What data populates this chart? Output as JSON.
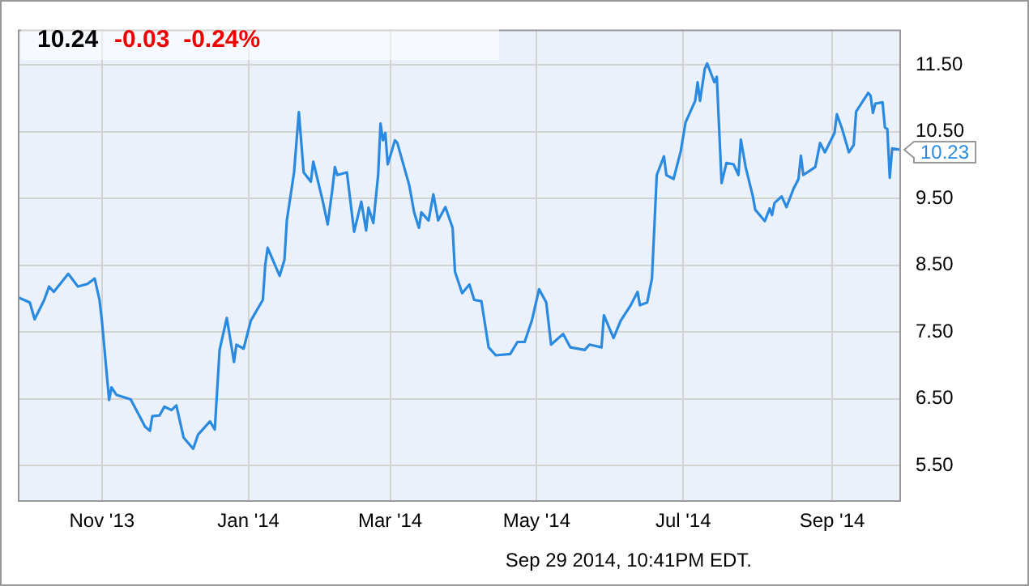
{
  "chart_data": {
    "type": "line",
    "title": "10.24",
    "subtitle": "-0.03  -0.24%",
    "annotations": [
      {
        "text": "10.23",
        "x": "2014-09-29",
        "y": 10.23
      },
      "Sep 29 2014, 10:41PM EDT."
    ],
    "x": [
      "2013-09-27",
      "2013-10-02",
      "2013-10-04",
      "2013-10-08",
      "2013-10-10",
      "2013-10-12",
      "2013-10-18",
      "2013-10-22",
      "2013-10-26",
      "2013-10-29",
      "2013-10-31",
      "2013-11-01",
      "2013-11-04",
      "2013-11-05",
      "2013-11-07",
      "2013-11-13",
      "2013-11-19",
      "2013-11-21",
      "2013-11-22",
      "2013-11-25",
      "2013-11-27",
      "2013-11-30",
      "2013-12-02",
      "2013-12-05",
      "2013-12-09",
      "2013-12-11",
      "2013-12-16",
      "2013-12-18",
      "2013-12-20",
      "2013-12-23",
      "2013-12-26",
      "2013-12-27",
      "2013-12-30",
      "2014-01-02",
      "2014-01-07",
      "2014-01-08",
      "2014-01-09",
      "2014-01-14",
      "2014-01-16",
      "2014-01-17",
      "2014-01-20",
      "2014-01-22",
      "2014-01-24",
      "2014-01-27",
      "2014-01-28",
      "2014-02-01",
      "2014-02-03",
      "2014-02-05",
      "2014-02-06",
      "2014-02-07",
      "2014-02-11",
      "2014-02-14",
      "2014-02-17",
      "2014-02-19",
      "2014-02-20",
      "2014-02-22",
      "2014-02-24",
      "2014-02-25",
      "2014-02-26",
      "2014-02-27",
      "2014-02-28",
      "2014-03-03",
      "2014-03-04",
      "2014-03-09",
      "2014-03-11",
      "2014-03-13",
      "2014-03-14",
      "2014-03-17",
      "2014-03-19",
      "2014-03-21",
      "2014-03-24",
      "2014-03-27",
      "2014-03-28",
      "2014-03-31",
      "2014-04-03",
      "2014-04-05",
      "2014-04-08",
      "2014-04-11",
      "2014-04-14",
      "2014-04-20",
      "2014-04-23",
      "2014-04-26",
      "2014-04-29",
      "2014-05-02",
      "2014-05-05",
      "2014-05-07",
      "2014-05-12",
      "2014-05-15",
      "2014-05-21",
      "2014-05-23",
      "2014-05-28",
      "2014-05-29",
      "2014-06-02",
      "2014-06-05",
      "2014-06-09",
      "2014-06-12",
      "2014-06-13",
      "2014-06-16",
      "2014-06-18",
      "2014-06-20",
      "2014-06-23",
      "2014-06-24",
      "2014-06-27",
      "2014-06-30",
      "2014-07-02",
      "2014-07-06",
      "2014-07-07",
      "2014-07-08",
      "2014-07-10",
      "2014-07-11",
      "2014-07-14",
      "2014-07-15",
      "2014-07-17",
      "2014-07-19",
      "2014-07-22",
      "2014-07-24",
      "2014-07-25",
      "2014-07-27",
      "2014-07-30",
      "2014-07-31",
      "2014-08-04",
      "2014-08-06",
      "2014-08-07",
      "2014-08-08",
      "2014-08-11",
      "2014-08-13",
      "2014-08-16",
      "2014-08-18",
      "2014-08-19",
      "2014-08-20",
      "2014-08-25",
      "2014-08-27",
      "2014-08-29",
      "2014-09-02",
      "2014-09-03",
      "2014-09-05",
      "2014-09-08",
      "2014-09-10",
      "2014-09-11",
      "2014-09-16",
      "2014-09-17",
      "2014-09-18",
      "2014-09-19",
      "2014-09-22",
      "2014-09-23",
      "2014-09-24",
      "2014-09-25",
      "2014-09-26",
      "2014-09-29"
    ],
    "series": [
      {
        "color": "#2a8ae0",
        "values": [
          8.02,
          7.94,
          7.69,
          7.98,
          8.18,
          8.1,
          8.37,
          8.18,
          8.22,
          8.3,
          7.98,
          7.67,
          6.48,
          6.67,
          6.56,
          6.49,
          6.08,
          6.02,
          6.24,
          6.25,
          6.38,
          6.33,
          6.4,
          5.92,
          5.75,
          5.96,
          6.16,
          6.04,
          7.23,
          7.71,
          7.05,
          7.31,
          7.25,
          7.67,
          7.98,
          8.5,
          8.76,
          8.34,
          8.58,
          9.17,
          9.89,
          10.79,
          9.89,
          9.75,
          10.05,
          9.45,
          9.11,
          9.65,
          9.97,
          9.85,
          9.89,
          9.0,
          9.45,
          9.02,
          9.36,
          9.13,
          9.85,
          10.62,
          10.37,
          10.48,
          10.01,
          10.37,
          10.33,
          9.69,
          9.29,
          9.06,
          9.29,
          9.17,
          9.56,
          9.17,
          9.37,
          9.06,
          8.4,
          8.08,
          8.21,
          7.98,
          7.96,
          7.27,
          7.15,
          7.17,
          7.35,
          7.35,
          7.67,
          8.14,
          7.94,
          7.31,
          7.47,
          7.27,
          7.23,
          7.31,
          7.27,
          7.75,
          7.41,
          7.67,
          7.89,
          8.1,
          7.9,
          7.94,
          8.3,
          9.85,
          10.13,
          9.85,
          9.79,
          10.21,
          10.64,
          10.96,
          11.24,
          10.96,
          11.44,
          11.52,
          11.24,
          11.32,
          9.73,
          10.03,
          10.01,
          9.85,
          10.38,
          9.97,
          9.53,
          9.33,
          9.16,
          9.35,
          9.25,
          9.43,
          9.53,
          9.37,
          9.65,
          9.79,
          10.14,
          9.85,
          9.97,
          10.33,
          10.19,
          10.48,
          10.76,
          10.56,
          10.19,
          10.3,
          10.8,
          11.08,
          11.04,
          10.78,
          10.92,
          10.94,
          10.56,
          10.54,
          9.81,
          10.25,
          10.23
        ]
      }
    ],
    "xlim": [
      "2013-09-27",
      "2014-09-29"
    ],
    "xticks": [
      {
        "value": "2013-11-01",
        "label": "Nov '13"
      },
      {
        "value": "2014-01-01",
        "label": "Jan '14"
      },
      {
        "value": "2014-03-01",
        "label": "Mar '14"
      },
      {
        "value": "2014-05-01",
        "label": "May '14"
      },
      {
        "value": "2014-07-01",
        "label": "Jul '14"
      },
      {
        "value": "2014-09-01",
        "label": "Sep '14"
      }
    ],
    "ylim": [
      4.98,
      12.03
    ],
    "yticks": [
      {
        "value": 5.5,
        "label": "5.50"
      },
      {
        "value": 6.5,
        "label": "6.50"
      },
      {
        "value": 7.5,
        "label": "7.50"
      },
      {
        "value": 8.5,
        "label": "8.50"
      },
      {
        "value": 9.5,
        "label": "9.50"
      },
      {
        "value": 10.5,
        "label": "10.50"
      },
      {
        "value": 11.5,
        "label": "11.50"
      }
    ],
    "grid": true
  }
}
